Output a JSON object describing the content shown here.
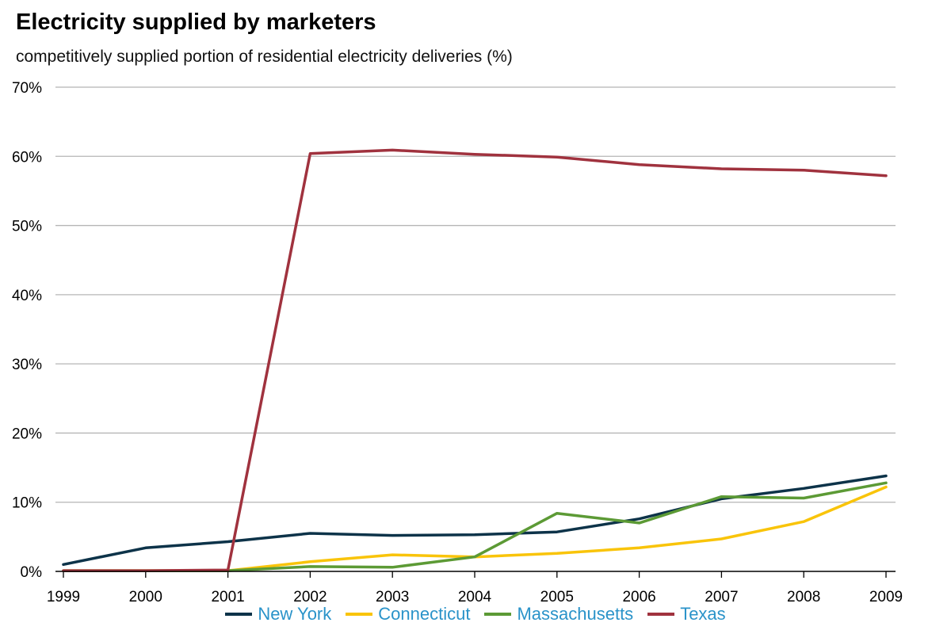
{
  "chart_data": {
    "type": "line",
    "title": "Electricity supplied by marketers",
    "subtitle": "competitively supplied portion of residential electricity deliveries (%)",
    "xlabel": "",
    "ylabel": "",
    "x": [
      "1999",
      "2000",
      "2001",
      "2002",
      "2003",
      "2004",
      "2005",
      "2006",
      "2007",
      "2008",
      "2009"
    ],
    "ylim": [
      0,
      70
    ],
    "yticks": [
      0,
      10,
      20,
      30,
      40,
      50,
      60,
      70
    ],
    "ytick_labels": [
      "0%",
      "10%",
      "20%",
      "30%",
      "40%",
      "50%",
      "60%",
      "70%"
    ],
    "grid": true,
    "legend_position": "bottom",
    "series": [
      {
        "name": "New York",
        "color": "#0d3349",
        "values": [
          1.0,
          3.4,
          4.3,
          5.5,
          5.2,
          5.3,
          5.7,
          7.6,
          10.5,
          12.0,
          13.8
        ]
      },
      {
        "name": "Connecticut",
        "color": "#f9c40a",
        "values": [
          0.1,
          0.1,
          0.1,
          1.4,
          2.4,
          2.1,
          2.6,
          3.4,
          4.7,
          7.2,
          12.2
        ]
      },
      {
        "name": "Massachusetts",
        "color": "#5c9a35",
        "values": [
          0.1,
          0.1,
          0.1,
          0.7,
          0.6,
          2.1,
          8.4,
          7.0,
          10.8,
          10.6,
          12.8
        ]
      },
      {
        "name": "Texas",
        "color": "#a0323e",
        "values": [
          0.1,
          0.1,
          0.2,
          60.4,
          60.9,
          60.3,
          59.9,
          58.8,
          58.2,
          58.0,
          57.2
        ]
      }
    ]
  }
}
